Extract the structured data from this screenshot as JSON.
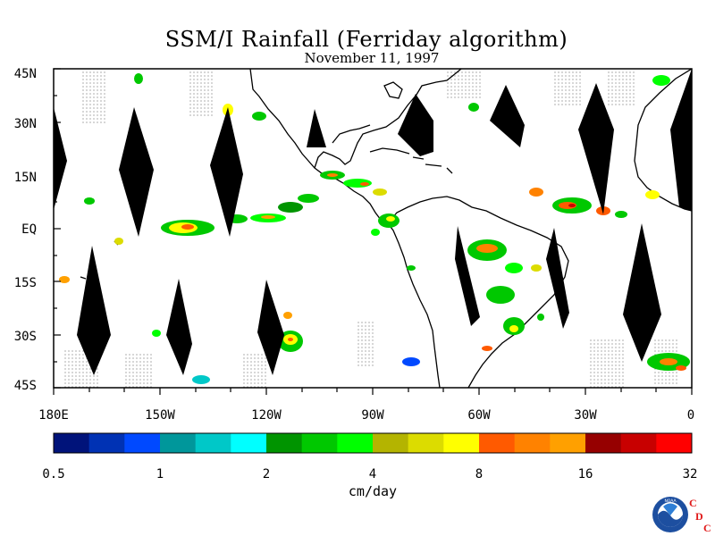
{
  "title": "SSM/I Rainfall (Ferriday algorithm)",
  "subtitle": "November 11, 1997",
  "lat_ticks": [
    "45N",
    "30N",
    "15N",
    "EQ",
    "15S",
    "30S",
    "45S"
  ],
  "lon_ticks": [
    "180E",
    "150W",
    "120W",
    "90W",
    "60W",
    "30W",
    "0"
  ],
  "colorbar": {
    "colors": [
      "#00137a",
      "#0032b4",
      "#0049ff",
      "#00979b",
      "#00c8c8",
      "#00ffff",
      "#009400",
      "#00c800",
      "#00ff00",
      "#b4b400",
      "#dcdc00",
      "#ffff00",
      "#ff5a00",
      "#ff8200",
      "#ffa000",
      "#960000",
      "#c80000",
      "#ff0000"
    ],
    "labels": [
      "0.5",
      "1",
      "2",
      "4",
      "8",
      "16",
      "32"
    ],
    "unit": "cm/day"
  },
  "logo": {
    "icon": "noaa-logo",
    "org": "CDC"
  }
}
